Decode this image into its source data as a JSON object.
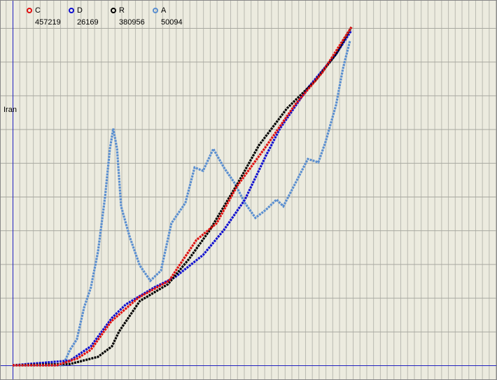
{
  "chart_data": {
    "type": "line",
    "axis_label": "Iran",
    "xlim": [
      0,
      142
    ],
    "ylim": [
      0,
      108
    ],
    "grid": true,
    "series": [
      {
        "name": "A",
        "legend_value": "50094",
        "color": "#5b8fd0",
        "x": [
          0,
          14.8,
          16.9,
          18.9,
          21,
          23,
          25.1,
          27.2,
          28.6,
          29.6,
          30.7,
          31.9,
          34.4,
          37.4,
          40.5,
          43.6,
          46.7,
          50.8,
          53.5,
          56,
          59,
          62.1,
          65.2,
          68.3,
          71.4,
          74.5,
          77.6,
          79.6,
          82.7,
          86.8,
          89.9,
          92,
          95.1,
          97.1,
          99.2
        ],
        "values": [
          0,
          0,
          4.6,
          7.7,
          17,
          23,
          33.6,
          50,
          64,
          70,
          64,
          47,
          38,
          29.5,
          25,
          28,
          42,
          48,
          58.5,
          57.5,
          64,
          58.5,
          54,
          48,
          43.6,
          46,
          49,
          47,
          53,
          61,
          60,
          66,
          77,
          87.6,
          96
        ]
      },
      {
        "name": "D",
        "legend_value": "26169",
        "color": "#1010d0",
        "x": [
          0,
          16.9,
          23,
          29.2,
          33.3,
          41.6,
          47.7,
          56,
          62.1,
          68.3,
          74.5,
          78.6,
          86.8,
          95.1,
          99.6
        ],
        "values": [
          0,
          1.4,
          5.6,
          14,
          18,
          23,
          26,
          32.6,
          40,
          49,
          62,
          70,
          82,
          92,
          99
        ]
      },
      {
        "name": "R",
        "legend_value": "380956",
        "color": "#000000",
        "x": [
          0,
          16.9,
          25.1,
          29.2,
          31.3,
          37.4,
          45.7,
          51.9,
          58,
          66.3,
          72.4,
          80.7,
          88.9,
          95.1,
          99.6
        ],
        "values": [
          0,
          0.4,
          2.5,
          5.6,
          10,
          19,
          24,
          31.5,
          40,
          54,
          65,
          76,
          84,
          92,
          100
        ]
      },
      {
        "name": "C",
        "legend_value": "457219",
        "color": "#e01010",
        "x": [
          0,
          13,
          19,
          23,
          29,
          37,
          46,
          54,
          60,
          66,
          74,
          83,
          91,
          99.6
        ],
        "values": [
          0,
          0,
          2,
          4.6,
          13,
          20,
          25,
          37,
          42,
          53,
          64,
          77,
          86.5,
          100
        ]
      }
    ]
  }
}
